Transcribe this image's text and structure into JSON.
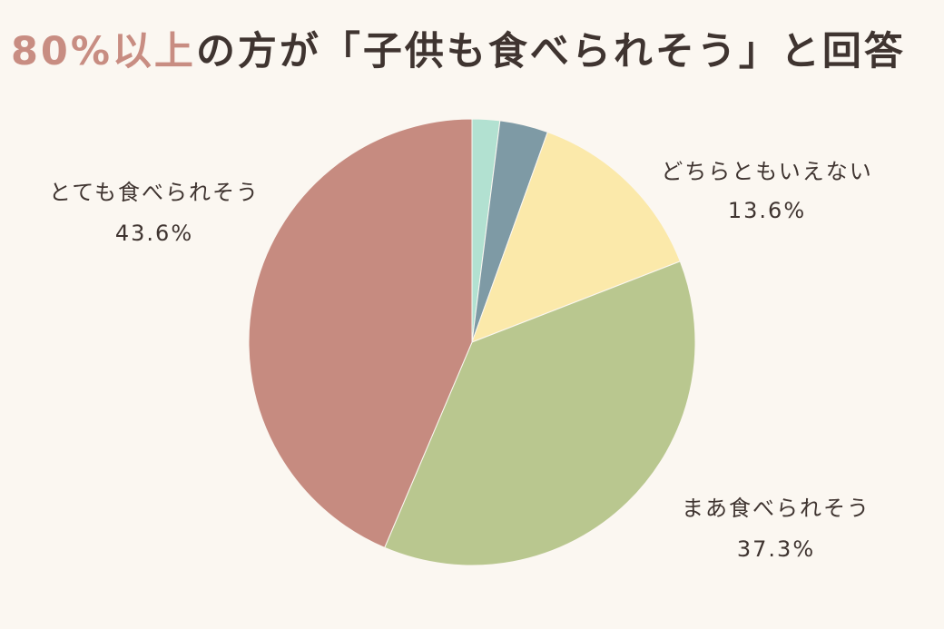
{
  "chart_data": {
    "type": "pie",
    "title_highlight": "80%以上",
    "title_rest": "の方が「子供も食べられそう」と回答",
    "slices": [
      {
        "label": "とても食べられそう",
        "value": 43.6,
        "value_label": "43.6%",
        "color": "#c68b80"
      },
      {
        "label": "まあ食べられそう",
        "value": 37.3,
        "value_label": "37.3%",
        "color": "#b9c78f"
      },
      {
        "label": "どちらともいえない",
        "value": 13.6,
        "value_label": "13.6%",
        "color": "#fbe9aa"
      },
      {
        "label": "",
        "value": 3.5,
        "value_label": "",
        "color": "#7e9aa5"
      },
      {
        "label": "",
        "value": 2.0,
        "value_label": "",
        "color": "#b2e1d1"
      }
    ]
  }
}
